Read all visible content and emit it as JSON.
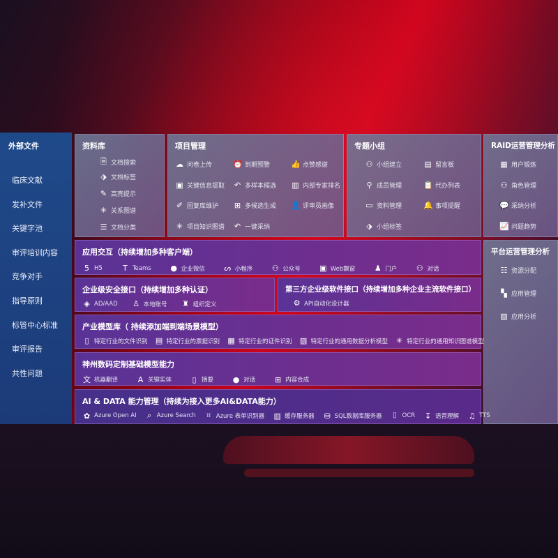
{
  "sidebar": {
    "title": "外部文件",
    "items": [
      "临床文献",
      "发补文件",
      "关键字池",
      "审评培训内容",
      "竞争对手",
      "指导原则",
      "标管中心标准",
      "审评报告",
      "共性问题"
    ]
  },
  "library": {
    "title": "资料库",
    "items": [
      {
        "icon": "doc-search",
        "label": "文档搜索"
      },
      {
        "icon": "tag",
        "label": "文档标签"
      },
      {
        "icon": "pen",
        "label": "高亮提示"
      },
      {
        "icon": "graph",
        "label": "关系图谱"
      },
      {
        "icon": "doc-list",
        "label": "文档分类"
      }
    ]
  },
  "project": {
    "title": "项目管理",
    "items": [
      {
        "icon": "cloud-upload",
        "label": "问卷上传"
      },
      {
        "icon": "alarm",
        "label": "到期预警"
      },
      {
        "icon": "thumbs-up",
        "label": "点赞感谢"
      },
      {
        "icon": "window",
        "label": "关键信息提取"
      },
      {
        "icon": "reply",
        "label": "多样本候选"
      },
      {
        "icon": "ranking",
        "label": "内部专家排名"
      },
      {
        "icon": "edit",
        "label": "回复库维护"
      },
      {
        "icon": "puzzle",
        "label": "多候选生成"
      },
      {
        "icon": "user",
        "label": "评审员画像"
      },
      {
        "icon": "graph",
        "label": "项目知识图谱"
      },
      {
        "icon": "reply",
        "label": "一键采纳"
      }
    ]
  },
  "group": {
    "title": "专题小组",
    "items": [
      {
        "icon": "users",
        "label": "小组建立"
      },
      {
        "icon": "bbs",
        "label": "留言板"
      },
      {
        "icon": "user-add",
        "label": "成员管理"
      },
      {
        "icon": "clipboard",
        "label": "代办列表"
      },
      {
        "icon": "folder",
        "label": "资料管理"
      },
      {
        "icon": "bell",
        "label": "事项提醒"
      },
      {
        "icon": "tag",
        "label": "小组标签"
      }
    ]
  },
  "raid": {
    "title": "RAID运营管理分析",
    "items": [
      {
        "icon": "id-card",
        "label": "用户锻炼"
      },
      {
        "icon": "users",
        "label": "角色管理"
      },
      {
        "icon": "qa",
        "label": "采纳分析"
      },
      {
        "icon": "trend",
        "label": "问题趋势"
      }
    ]
  },
  "platform": {
    "title": "平台运营管理分析",
    "items": [
      {
        "icon": "list",
        "label": "资源分配"
      },
      {
        "icon": "apps",
        "label": "应用管理"
      },
      {
        "icon": "chart",
        "label": "应用分析"
      }
    ]
  },
  "interaction": {
    "title": "应用交互（持续增加多种客户端）",
    "items": [
      {
        "icon": "html5",
        "label": "H5"
      },
      {
        "icon": "teams",
        "label": "Teams"
      },
      {
        "icon": "wechat",
        "label": "企业微信"
      },
      {
        "icon": "miniprogram",
        "label": "小程序"
      },
      {
        "icon": "users",
        "label": "公众号"
      },
      {
        "icon": "window",
        "label": "Web飘窗"
      },
      {
        "icon": "portal",
        "label": "门户"
      },
      {
        "icon": "chat-users",
        "label": "对话"
      }
    ]
  },
  "security": {
    "title": "企业级安全接口（持续增加多种认证）",
    "items": [
      {
        "icon": "aad",
        "label": "AD/AAD"
      },
      {
        "icon": "user-key",
        "label": "本地账号"
      },
      {
        "icon": "org",
        "label": "组织定义"
      }
    ]
  },
  "thirdparty": {
    "title": "第三方企业级软件接口（持续增加多种企业主流软件接口）",
    "items": [
      {
        "icon": "gear",
        "label": "API自动化设计器"
      }
    ]
  },
  "industry": {
    "title": "产业模型库（ 持续添加端到端场景模型）",
    "items": [
      {
        "icon": "doc",
        "label": "特定行业的文件识别"
      },
      {
        "icon": "receipt",
        "label": "特定行业的票据识别"
      },
      {
        "icon": "id-card",
        "label": "特定行业的证件识别"
      },
      {
        "icon": "image",
        "label": "特定行业的通用数据分析模型"
      },
      {
        "icon": "graph",
        "label": "特定行业的通用知识图谱模型"
      }
    ]
  },
  "basemodel": {
    "title": "神州数码定制基础模型能力",
    "items": [
      {
        "icon": "translate",
        "label": "机器翻译"
      },
      {
        "icon": "entity",
        "label": "关键实体"
      },
      {
        "icon": "summary",
        "label": "摘要"
      },
      {
        "icon": "chat",
        "label": "对话"
      },
      {
        "icon": "puzzle",
        "label": "内容合成"
      }
    ]
  },
  "aidata": {
    "title": "AI & DATA 能力管理（持续为接入更多AI&DATA能力）",
    "items": [
      {
        "icon": "openai",
        "label": "Azure Open AI"
      },
      {
        "icon": "search",
        "label": "Azure Search"
      },
      {
        "icon": "form",
        "label": "Azure 表单识别器"
      },
      {
        "icon": "cache",
        "label": "缓存服务器"
      },
      {
        "icon": "database",
        "label": "SQL数据库服务器"
      },
      {
        "icon": "ocr",
        "label": "OCR"
      },
      {
        "icon": "speech",
        "label": "语音理解"
      },
      {
        "icon": "tts",
        "label": "TTS"
      }
    ]
  }
}
